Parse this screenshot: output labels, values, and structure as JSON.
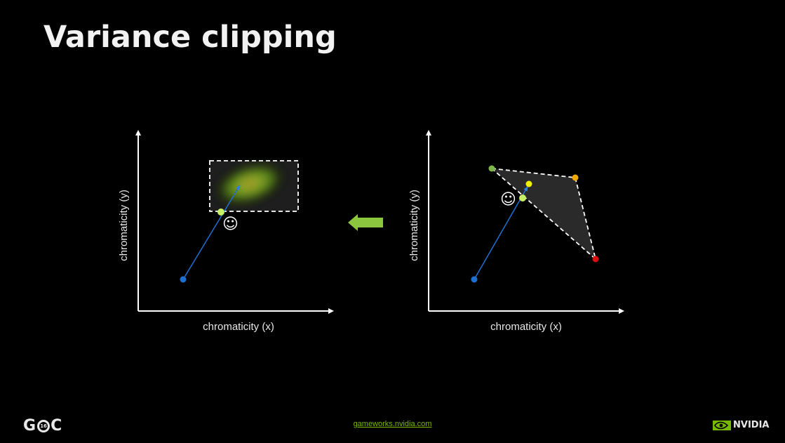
{
  "slide": {
    "title": "Variance clipping"
  },
  "left_diagram": {
    "x_label": "chromaticity (x)",
    "y_label": "chromaticity (y)",
    "smiley": "☺"
  },
  "right_diagram": {
    "x_label": "chromaticity (x)",
    "y_label": "chromaticity (y)",
    "smiley": "☺"
  },
  "colors": {
    "history_blue": "#1f6fd0",
    "clipped_green": "#c8f064",
    "arrow_green": "#8cc63f",
    "sample_green": "#7ab648",
    "sample_yellow": "#f0f000",
    "sample_orange": "#f0a800",
    "sample_red": "#d81010",
    "nvidia_green": "#76b900"
  },
  "footer": {
    "link": "gameworks.nvidia.com",
    "gdc_left": "G",
    "gdc_year": "16",
    "gdc_right": "C",
    "nvidia": "NVIDIA"
  }
}
